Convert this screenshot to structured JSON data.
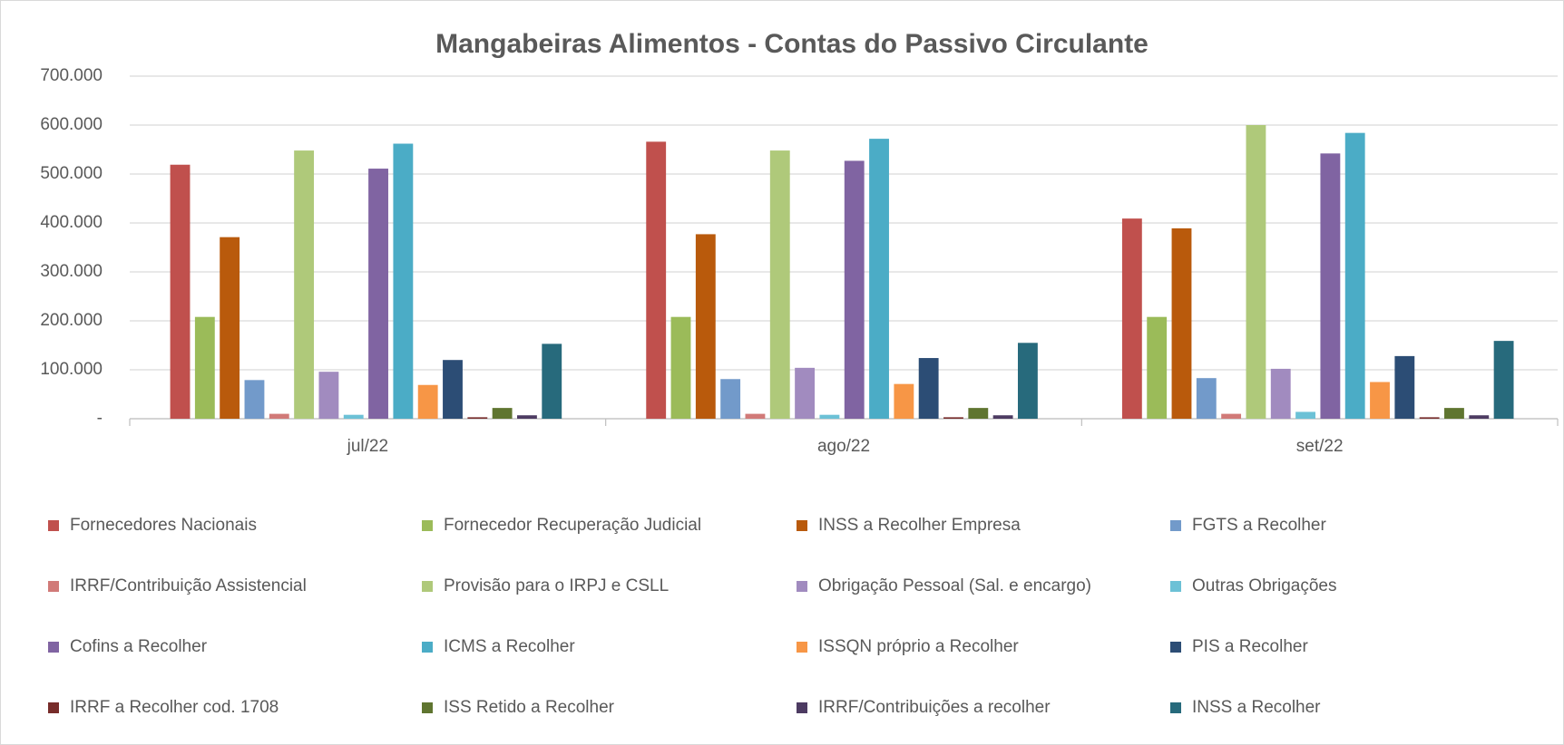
{
  "chart_data": {
    "type": "bar",
    "title": "Mangabeiras Alimentos - Contas do Passivo Circulante",
    "categories": [
      "jul/22",
      "ago/22",
      "set/22"
    ],
    "ylim": [
      0,
      700000
    ],
    "yticks": [
      {
        "value": 0,
        "label": "-"
      },
      {
        "value": 100000,
        "label": "100.000"
      },
      {
        "value": 200000,
        "label": "200.000"
      },
      {
        "value": 300000,
        "label": "300.000"
      },
      {
        "value": 400000,
        "label": "400.000"
      },
      {
        "value": 500000,
        "label": "500.000"
      },
      {
        "value": 600000,
        "label": "600.000"
      },
      {
        "value": 700000,
        "label": "700.000"
      }
    ],
    "grid": true,
    "legend": "bottom",
    "series": [
      {
        "name": "Fornecedores Nacionais",
        "color": "#c0504d",
        "values": [
          519000,
          566000,
          409000
        ]
      },
      {
        "name": "Fornecedor Recuperação Judicial",
        "color": "#9bbb59",
        "values": [
          208000,
          208000,
          208000
        ]
      },
      {
        "name": "INSS a Recolher Empresa",
        "color": "#b95a0c",
        "values": [
          371000,
          377000,
          389000
        ]
      },
      {
        "name": "FGTS a Recolher",
        "color": "#729aca",
        "values": [
          79000,
          81000,
          83000
        ]
      },
      {
        "name": "IRRF/Contribuição Assistencial",
        "color": "#d17a78",
        "values": [
          10000,
          10000,
          10000
        ]
      },
      {
        "name": "Provisão para o IRPJ e CSLL",
        "color": "#afc97a",
        "values": [
          548000,
          548000,
          600000
        ]
      },
      {
        "name": "Obrigação Pessoal (Sal. e encargo)",
        "color": "#a18bbf",
        "values": [
          96000,
          104000,
          102000
        ]
      },
      {
        "name": "Outras Obrigações",
        "color": "#6cc1d6",
        "values": [
          8000,
          8000,
          14000
        ]
      },
      {
        "name": "Cofins a Recolher",
        "color": "#8064a2",
        "values": [
          511000,
          527000,
          542000
        ]
      },
      {
        "name": "ICMS a Recolher",
        "color": "#4bacc6",
        "values": [
          562000,
          572000,
          584000
        ]
      },
      {
        "name": "ISSQN próprio a Recolher",
        "color": "#f79646",
        "values": [
          69000,
          71000,
          75000
        ]
      },
      {
        "name": "PIS a Recolher",
        "color": "#2c4d75",
        "values": [
          120000,
          124000,
          128000
        ]
      },
      {
        "name": "IRRF a Recolher cod. 1708",
        "color": "#772c2a",
        "values": [
          3000,
          3000,
          3000
        ]
      },
      {
        "name": "ISS Retido a Recolher",
        "color": "#5f7530",
        "values": [
          22000,
          22000,
          22000
        ]
      },
      {
        "name": "IRRF/Contribuições a recolher",
        "color": "#4d3b62",
        "values": [
          7000,
          7000,
          7000
        ]
      },
      {
        "name": "INSS a Recolher",
        "color": "#276a7c",
        "values": [
          153000,
          155000,
          159000
        ]
      }
    ]
  }
}
